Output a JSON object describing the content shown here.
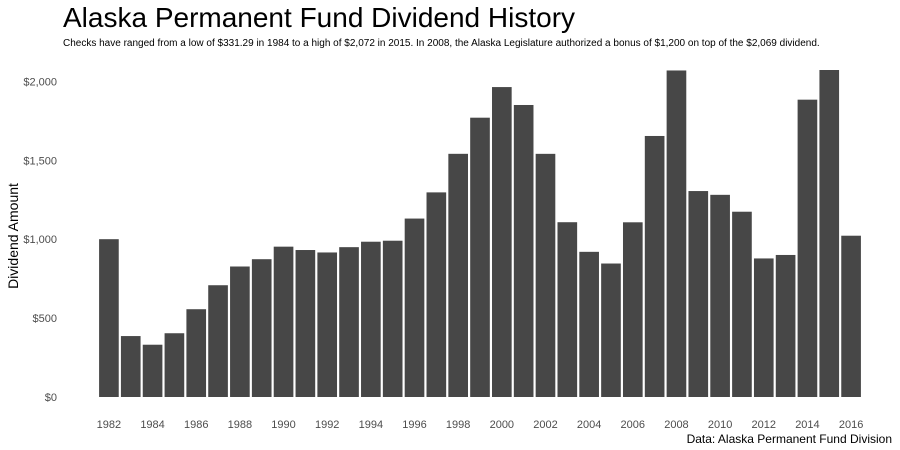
{
  "chart_data": {
    "type": "bar",
    "title": "Alaska Permanent Fund Dividend History",
    "subtitle": "Checks have ranged from a low of $331.29 in 1984 to a high of $2,072 in 2015. In 2008, the Alaska Legislature authorized a bonus of $1,200 on top of the $2,069 dividend.",
    "caption": "Data: Alaska Permanent Fund Division",
    "xlabel": "",
    "ylabel": "Dividend Amount",
    "ylim": [
      0,
      2072
    ],
    "yticks": [
      0,
      500,
      1000,
      1500,
      2000
    ],
    "ytick_labels": [
      "$0",
      "$500",
      "$1,000",
      "$1,500",
      "$2,000"
    ],
    "xtick_labels": [
      "1982",
      "1984",
      "1986",
      "1988",
      "1990",
      "1992",
      "1994",
      "1996",
      "1998",
      "2000",
      "2002",
      "2004",
      "2006",
      "2008",
      "2010",
      "2012",
      "2014",
      "2016"
    ],
    "categories": [
      "1982",
      "1983",
      "1984",
      "1985",
      "1986",
      "1987",
      "1988",
      "1989",
      "1990",
      "1991",
      "1992",
      "1993",
      "1994",
      "1995",
      "1996",
      "1997",
      "1998",
      "1999",
      "2000",
      "2001",
      "2002",
      "2003",
      "2004",
      "2005",
      "2006",
      "2007",
      "2008",
      "2009",
      "2010",
      "2011",
      "2012",
      "2013",
      "2014",
      "2015",
      "2016"
    ],
    "values": [
      1000,
      386.15,
      331.29,
      404,
      556.26,
      708.19,
      826.93,
      873.16,
      952.63,
      931.34,
      915.84,
      949.46,
      983.9,
      990.3,
      1130.68,
      1296.54,
      1540.88,
      1769.84,
      1963.86,
      1850.28,
      1540.76,
      1107.56,
      919.84,
      845.76,
      1106.96,
      1654,
      2069,
      1305,
      1281,
      1174,
      878,
      900,
      1884,
      2072,
      1022
    ],
    "bar_color": "#474747",
    "grid": false
  }
}
